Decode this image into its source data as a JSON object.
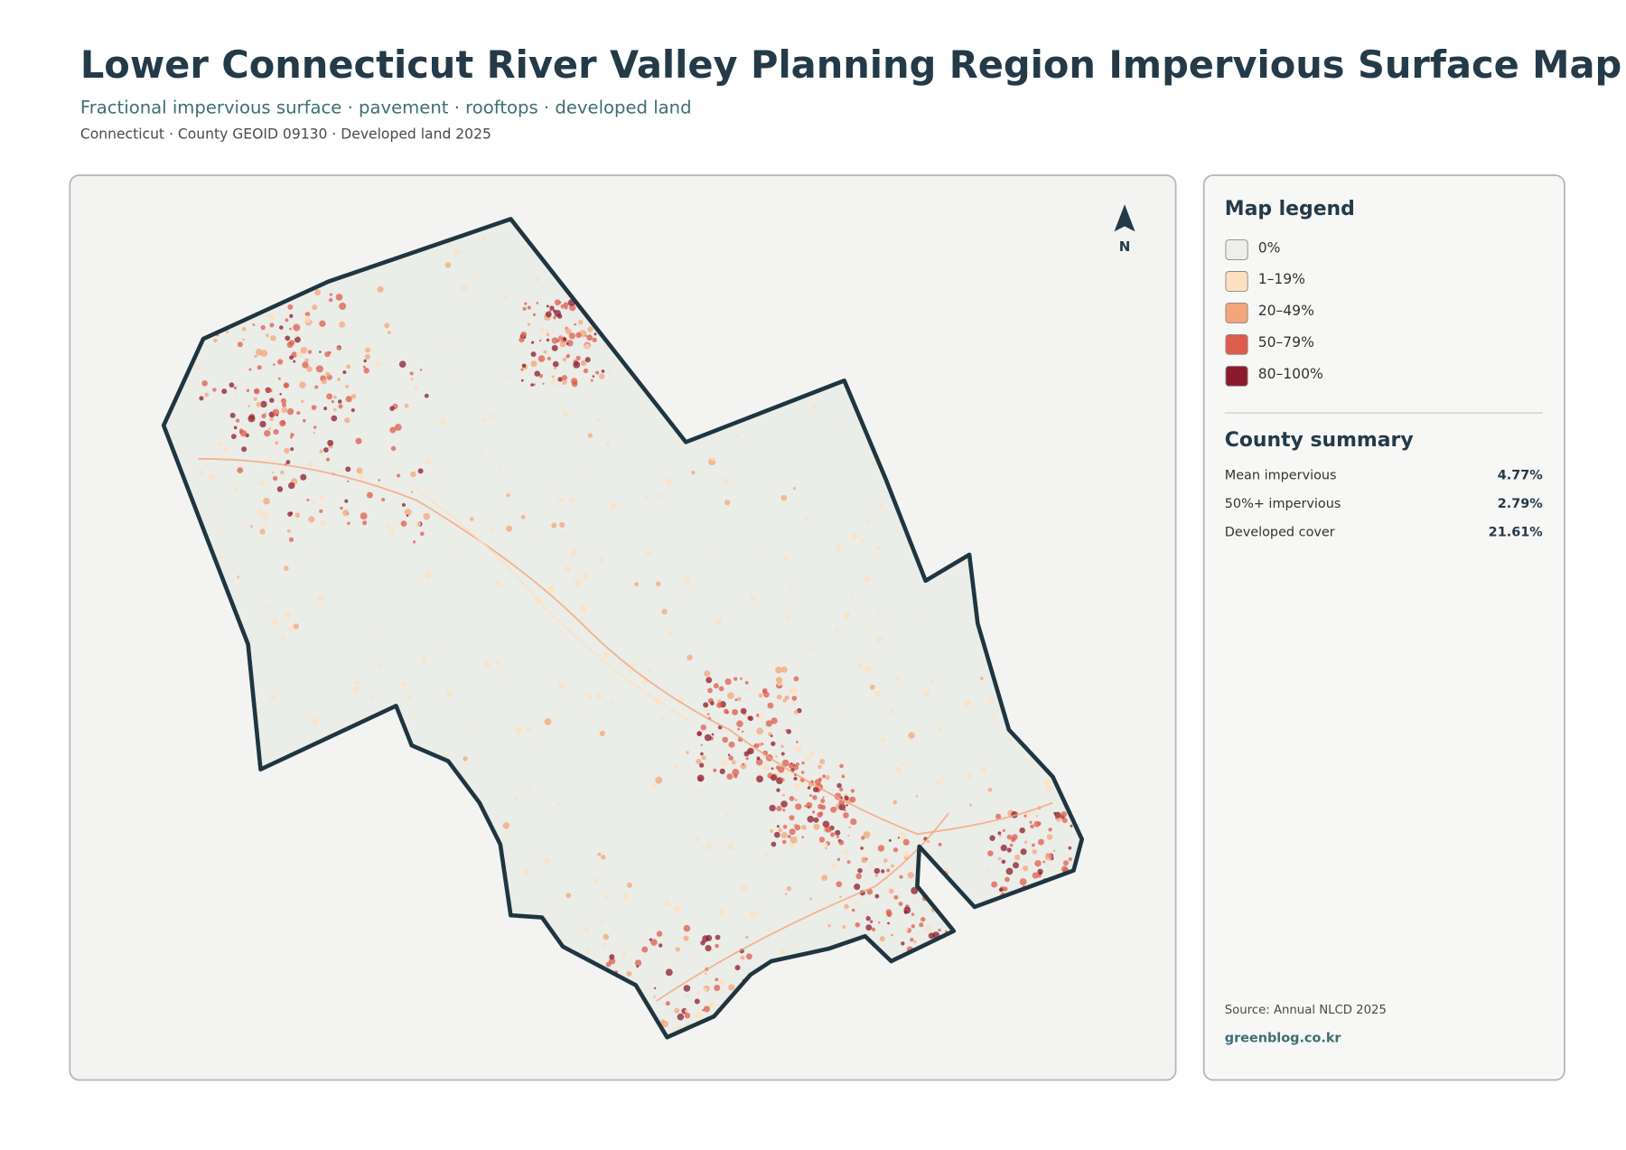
{
  "header": {
    "title": "Lower Connecticut River Valley Planning Region Impervious Surface Map",
    "subtitle": "Fractional impervious surface · pavement · rooftops · developed land",
    "meta": "Connecticut · County GEOID 09130 · Developed land 2025"
  },
  "map": {
    "north_label": "N"
  },
  "legend": {
    "title": "Map legend",
    "items": [
      {
        "label": "0%",
        "color": "#eeeeea"
      },
      {
        "label": "1–19%",
        "color": "#fde0c0"
      },
      {
        "label": "20–49%",
        "color": "#f4a57a"
      },
      {
        "label": "50–79%",
        "color": "#dd5c4c"
      },
      {
        "label": "80–100%",
        "color": "#8c1a2e"
      }
    ]
  },
  "summary": {
    "title": "County summary",
    "rows": [
      {
        "label": "Mean impervious",
        "value": "4.77%"
      },
      {
        "label": "50%+ impervious",
        "value": "2.79%"
      },
      {
        "label": "Developed cover",
        "value": "21.61%"
      }
    ]
  },
  "footer": {
    "source": "Source: Annual NLCD 2025",
    "credit": "greenblog.co.kr"
  }
}
